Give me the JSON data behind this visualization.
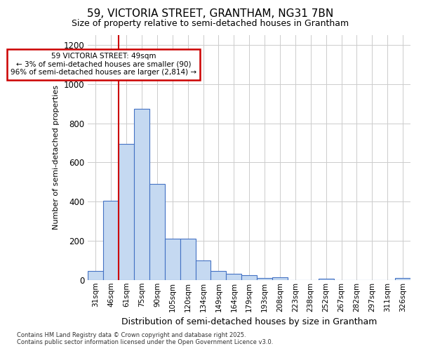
{
  "title_line1": "59, VICTORIA STREET, GRANTHAM, NG31 7BN",
  "title_line2": "Size of property relative to semi-detached houses in Grantham",
  "xlabel": "Distribution of semi-detached houses by size in Grantham",
  "ylabel": "Number of semi-detached properties",
  "annotation_title": "59 VICTORIA STREET: 49sqm",
  "annotation_line2": "← 3% of semi-detached houses are smaller (90)",
  "annotation_line3": "96% of semi-detached houses are larger (2,814) →",
  "footer_line1": "Contains HM Land Registry data © Crown copyright and database right 2025.",
  "footer_line2": "Contains public sector information licensed under the Open Government Licence v3.0.",
  "categories": [
    "31sqm",
    "46sqm",
    "61sqm",
    "75sqm",
    "90sqm",
    "105sqm",
    "120sqm",
    "134sqm",
    "149sqm",
    "164sqm",
    "179sqm",
    "193sqm",
    "208sqm",
    "223sqm",
    "238sqm",
    "252sqm",
    "267sqm",
    "282sqm",
    "297sqm",
    "311sqm",
    "326sqm"
  ],
  "values": [
    45,
    405,
    695,
    875,
    490,
    210,
    210,
    100,
    45,
    30,
    25,
    10,
    15,
    0,
    0,
    5,
    0,
    0,
    0,
    0,
    10
  ],
  "bar_color": "#c5d9f1",
  "bar_edge_color": "#4472c4",
  "red_line_x": 2,
  "annotation_box_edge_color": "#cc0000",
  "annotation_box_face_color": "#ffffff",
  "grid_color": "#cccccc",
  "background_color": "#ffffff",
  "plot_bg_color": "#ffffff",
  "ylim": [
    0,
    1250
  ],
  "yticks": [
    0,
    200,
    400,
    600,
    800,
    1000,
    1200
  ]
}
